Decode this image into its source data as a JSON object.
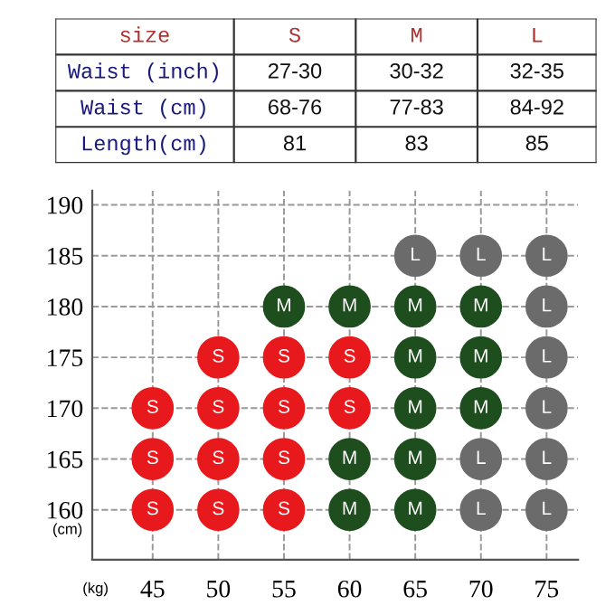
{
  "chart_data": [
    {
      "type": "other",
      "annotations": [
        "size",
        "S",
        "M",
        "L",
        "Waist (inch)",
        "27-30",
        "30-32",
        "32-35",
        "Waist (cm)",
        "68-76",
        "77-83",
        "84-92",
        "Length(cm)",
        "81",
        "83",
        "85"
      ]
    },
    {
      "type": "scatter",
      "xlabel": "(kg)",
      "ylabel": "(cm)",
      "xlim": [
        40.4,
        77.4
      ],
      "ylim": [
        155.1,
        191.4
      ],
      "xticks": [
        45,
        50,
        55,
        60,
        65,
        70,
        75
      ],
      "yticks": [
        160,
        165,
        170,
        175,
        180,
        185,
        190
      ],
      "grid": true,
      "legend": false,
      "marker": "circle",
      "series": [
        {
          "name": "S",
          "color": "#e8191c",
          "x": [
            45,
            45,
            45,
            50,
            50,
            50,
            50,
            55,
            55,
            55,
            55,
            60,
            60
          ],
          "values": [
            170,
            165,
            160,
            175,
            170,
            165,
            160,
            175,
            170,
            165,
            160,
            175,
            170
          ]
        },
        {
          "name": "M",
          "color": "#1e4d1e",
          "x": [
            55,
            60,
            65,
            70,
            65,
            70,
            65,
            70,
            60,
            65,
            60,
            65
          ],
          "values": [
            180,
            180,
            180,
            180,
            175,
            175,
            170,
            170,
            165,
            165,
            160,
            160
          ]
        },
        {
          "name": "L",
          "color": "#6b6b6b",
          "x": [
            65,
            70,
            75,
            75,
            75,
            75,
            70,
            75,
            70,
            75
          ],
          "values": [
            185,
            185,
            185,
            180,
            175,
            170,
            165,
            165,
            160,
            160
          ]
        }
      ]
    }
  ]
}
